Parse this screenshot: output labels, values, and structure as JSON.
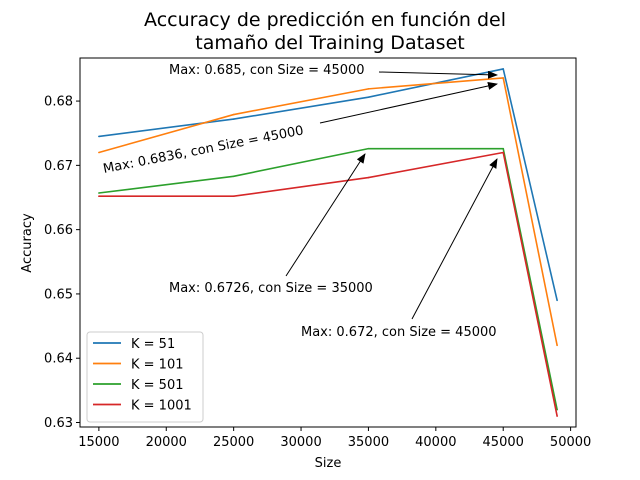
{
  "chart_data": {
    "type": "line",
    "title_lines": [
      "Accuracy de predicción en función del",
      "tamaño del Training Dataset"
    ],
    "xlabel": "Size",
    "ylabel": "Accuracy",
    "xlim": [
      13600,
      50400
    ],
    "ylim": [
      0.6293,
      0.6867
    ],
    "xticks": [
      15000,
      20000,
      25000,
      30000,
      35000,
      40000,
      45000,
      50000
    ],
    "yticks": [
      0.63,
      0.64,
      0.65,
      0.66,
      0.67,
      0.68
    ],
    "ytick_labels": [
      "0.63",
      "0.64",
      "0.65",
      "0.66",
      "0.67",
      "0.68"
    ],
    "x": [
      15000,
      25000,
      35000,
      45000,
      49000
    ],
    "series": [
      {
        "name": "K = 51",
        "color": "#1f77b4",
        "values": [
          0.6745,
          0.6772,
          0.6806,
          0.685,
          0.649
        ]
      },
      {
        "name": "K = 101",
        "color": "#ff7f0e",
        "values": [
          0.672,
          0.6779,
          0.6819,
          0.6836,
          0.642
        ]
      },
      {
        "name": "K = 501",
        "color": "#2ca02c",
        "values": [
          0.6657,
          0.6683,
          0.6726,
          0.6726,
          0.632
        ]
      },
      {
        "name": "K = 1001",
        "color": "#d62728",
        "values": [
          0.6652,
          0.6652,
          0.6681,
          0.672,
          0.631
        ]
      }
    ],
    "annotations": [
      {
        "text": "Max: 0.685, con Size = 45000",
        "point": [
          45000,
          0.685
        ]
      },
      {
        "text": "Max: 0.6836, con Size = 45000",
        "point": [
          45000,
          0.6836
        ]
      },
      {
        "text": "Max: 0.6726, con Size = 35000",
        "point": [
          35000,
          0.6726
        ]
      },
      {
        "text": "Max: 0.672, con Size = 45000",
        "point": [
          45000,
          0.672
        ]
      }
    ],
    "legend_position": "lower-left",
    "grid": false
  }
}
